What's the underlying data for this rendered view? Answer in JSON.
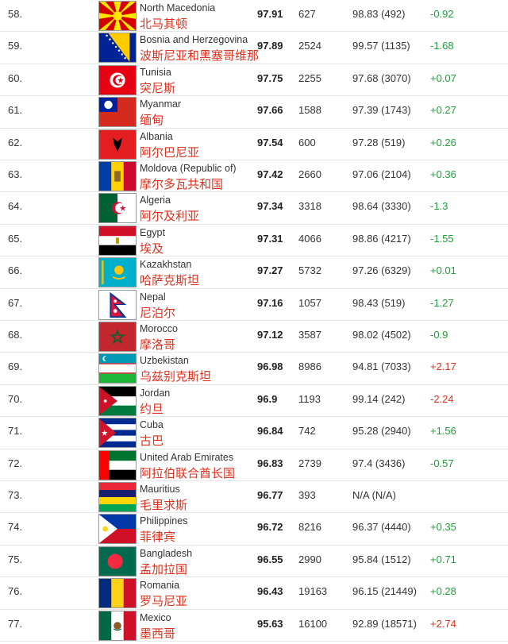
{
  "rows": [
    {
      "rank": "58.",
      "flag": "north-macedonia",
      "name_en": "North Macedonia",
      "name_zh": "北马其顿",
      "score": "97.91",
      "pop": "627",
      "prev": "98.83 (492)",
      "change": "-0.92",
      "change_color": "#1e9e3a"
    },
    {
      "rank": "59.",
      "flag": "bosnia",
      "name_en": "Bosnia and Herzegovina",
      "name_zh": "波斯尼亚和黑塞哥维那",
      "score": "97.89",
      "pop": "2524",
      "prev": "99.57 (1135)",
      "change": "-1.68",
      "change_color": "#1e9e3a"
    },
    {
      "rank": "60.",
      "flag": "tunisia",
      "name_en": "Tunisia",
      "name_zh": "突尼斯",
      "score": "97.75",
      "pop": "2255",
      "prev": "97.68 (3070)",
      "change": "+0.07",
      "change_color": "#1e9e3a"
    },
    {
      "rank": "61.",
      "flag": "myanmar",
      "name_en": "Myanmar",
      "name_zh": "缅甸",
      "score": "97.66",
      "pop": "1588",
      "prev": "97.39 (1743)",
      "change": "+0.27",
      "change_color": "#1e9e3a"
    },
    {
      "rank": "62.",
      "flag": "albania",
      "name_en": "Albania",
      "name_zh": "阿尔巴尼亚",
      "score": "97.54",
      "pop": "600",
      "prev": "97.28 (519)",
      "change": "+0.26",
      "change_color": "#1e9e3a"
    },
    {
      "rank": "63.",
      "flag": "moldova",
      "name_en": "Moldova (Republic of)",
      "name_zh": "摩尔多瓦共和国",
      "score": "97.42",
      "pop": "2660",
      "prev": "97.06 (2104)",
      "change": "+0.36",
      "change_color": "#1e9e3a"
    },
    {
      "rank": "64.",
      "flag": "algeria",
      "name_en": "Algeria",
      "name_zh": "阿尔及利亚",
      "score": "97.34",
      "pop": "3318",
      "prev": "98.64 (3330)",
      "change": "-1.3",
      "change_color": "#1e9e3a"
    },
    {
      "rank": "65.",
      "flag": "egypt",
      "name_en": "Egypt",
      "name_zh": "埃及",
      "score": "97.31",
      "pop": "4066",
      "prev": "98.86 (4217)",
      "change": "-1.55",
      "change_color": "#1e9e3a"
    },
    {
      "rank": "66.",
      "flag": "kazakhstan",
      "name_en": "Kazakhstan",
      "name_zh": "哈萨克斯坦",
      "score": "97.27",
      "pop": "5732",
      "prev": "97.26 (6329)",
      "change": "+0.01",
      "change_color": "#1e9e3a"
    },
    {
      "rank": "67.",
      "flag": "nepal",
      "name_en": "Nepal",
      "name_zh": "尼泊尔",
      "score": "97.16",
      "pop": "1057",
      "prev": "98.43 (519)",
      "change": "-1.27",
      "change_color": "#1e9e3a"
    },
    {
      "rank": "68.",
      "flag": "morocco",
      "name_en": "Morocco",
      "name_zh": "摩洛哥",
      "score": "97.12",
      "pop": "3587",
      "prev": "98.02 (4502)",
      "change": "-0.9",
      "change_color": "#1e9e3a"
    },
    {
      "rank": "69.",
      "flag": "uzbekistan",
      "name_en": "Uzbekistan",
      "name_zh": "乌兹别克斯坦",
      "score": "96.98",
      "pop": "8986",
      "prev": "94.81 (7033)",
      "change": "+2.17",
      "change_color": "#e0301e"
    },
    {
      "rank": "70.",
      "flag": "jordan",
      "name_en": "Jordan",
      "name_zh": "约旦",
      "score": "96.9",
      "pop": "1193",
      "prev": "99.14 (242)",
      "change": "-2.24",
      "change_color": "#e0301e"
    },
    {
      "rank": "71.",
      "flag": "cuba",
      "name_en": "Cuba",
      "name_zh": "古巴",
      "score": "96.84",
      "pop": "742",
      "prev": "95.28 (2940)",
      "change": "+1.56",
      "change_color": "#1e9e3a"
    },
    {
      "rank": "72.",
      "flag": "uae",
      "name_en": "United Arab Emirates",
      "name_zh": "阿拉伯联合酋长国",
      "score": "96.83",
      "pop": "2739",
      "prev": "97.4 (3436)",
      "change": "-0.57",
      "change_color": "#1e9e3a"
    },
    {
      "rank": "73.",
      "flag": "mauritius",
      "name_en": "Mauritius",
      "name_zh": "毛里求斯",
      "score": "96.77",
      "pop": "393",
      "prev": "N/A (N/A)",
      "change": "",
      "change_color": "#1e9e3a"
    },
    {
      "rank": "74.",
      "flag": "philippines",
      "name_en": "Philippines",
      "name_zh": "菲律宾",
      "score": "96.72",
      "pop": "8216",
      "prev": "96.37 (4440)",
      "change": "+0.35",
      "change_color": "#1e9e3a"
    },
    {
      "rank": "75.",
      "flag": "bangladesh",
      "name_en": "Bangladesh",
      "name_zh": "孟加拉国",
      "score": "96.55",
      "pop": "2990",
      "prev": "95.84 (1512)",
      "change": "+0.71",
      "change_color": "#1e9e3a"
    },
    {
      "rank": "76.",
      "flag": "romania",
      "name_en": "Romania",
      "name_zh": "罗马尼亚",
      "score": "96.43",
      "pop": "19163",
      "prev": "96.15 (21449)",
      "change": "+0.28",
      "change_color": "#1e9e3a"
    },
    {
      "rank": "77.",
      "flag": "mexico",
      "name_en": "Mexico",
      "name_zh": "墨西哥",
      "score": "95.63",
      "pop": "16100",
      "prev": "92.89 (18571)",
      "change": "+2.74",
      "change_color": "#e0301e"
    }
  ]
}
